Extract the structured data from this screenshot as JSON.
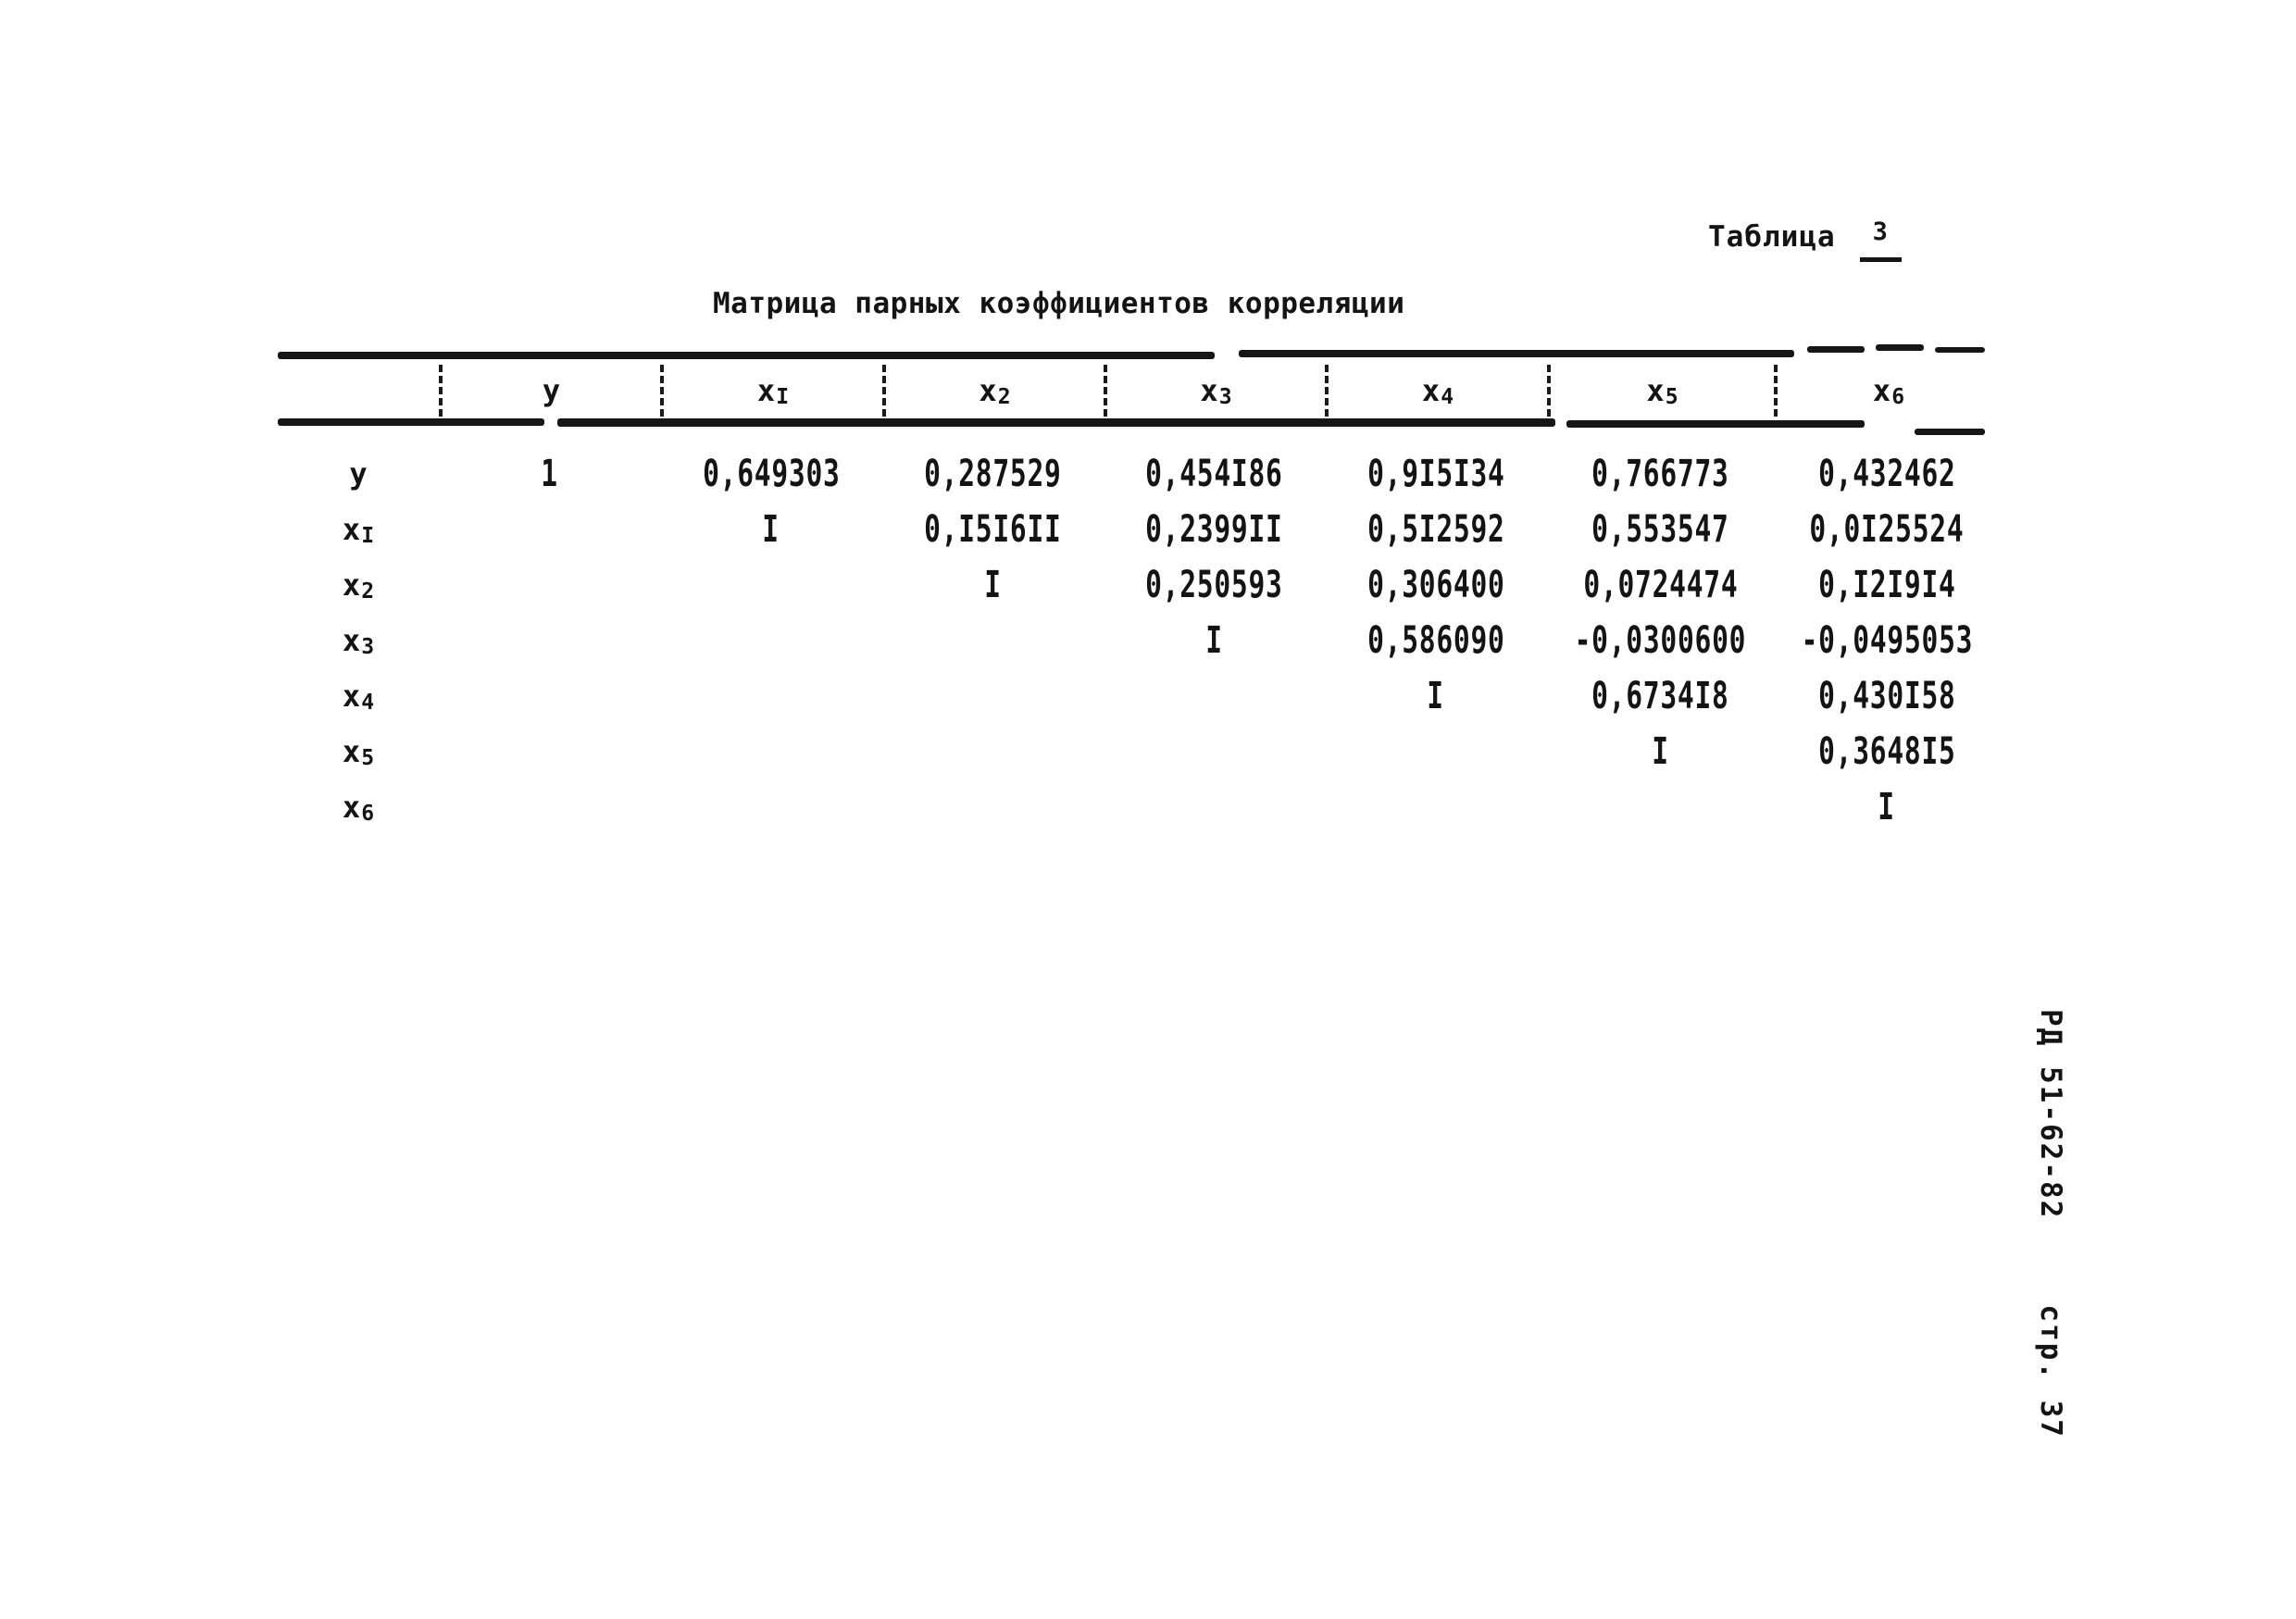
{
  "page": {
    "table_caption_label": "Таблица",
    "table_caption_number": "3",
    "title": "Матрица парных коэффициентов корреляции",
    "margin_note_doc": "РД 51-62-82",
    "margin_note_page": "стр. 37"
  },
  "table": {
    "header": [
      {
        "base": "",
        "sub": ""
      },
      {
        "base": "y",
        "sub": ""
      },
      {
        "base": "x",
        "sub": "I"
      },
      {
        "base": "x",
        "sub": "2"
      },
      {
        "base": "x",
        "sub": "3"
      },
      {
        "base": "x",
        "sub": "4"
      },
      {
        "base": "x",
        "sub": "5"
      },
      {
        "base": "x",
        "sub": "6"
      }
    ],
    "rows": [
      {
        "label": {
          "base": "y",
          "sub": ""
        },
        "cells": [
          "1",
          "0,649303",
          "0,287529",
          "0,454I86",
          "0,9I5I34",
          "0,766773",
          "0,432462"
        ]
      },
      {
        "label": {
          "base": "x",
          "sub": "I"
        },
        "cells": [
          "",
          "I",
          "0,I5I6II",
          "0,2399II",
          "0,5I2592",
          "0,553547",
          "0,0I25524"
        ]
      },
      {
        "label": {
          "base": "x",
          "sub": "2"
        },
        "cells": [
          "",
          "",
          "I",
          "0,250593",
          "0,306400",
          "0,0724474",
          "0,I2I9I4"
        ]
      },
      {
        "label": {
          "base": "x",
          "sub": "3"
        },
        "cells": [
          "",
          "",
          "",
          "I",
          "0,586090",
          "-0,0300600",
          "-0,0495053"
        ]
      },
      {
        "label": {
          "base": "x",
          "sub": "4"
        },
        "cells": [
          "",
          "",
          "",
          "",
          "I",
          "0,6734I8",
          "0,430I58"
        ]
      },
      {
        "label": {
          "base": "x",
          "sub": "5"
        },
        "cells": [
          "",
          "",
          "",
          "",
          "",
          "I",
          "0,3648I5"
        ]
      },
      {
        "label": {
          "base": "x",
          "sub": "6"
        },
        "cells": [
          "",
          "",
          "",
          "",
          "",
          "",
          "I"
        ]
      }
    ]
  },
  "colors": {
    "ink": "#141414",
    "paper": "#ffffff"
  }
}
